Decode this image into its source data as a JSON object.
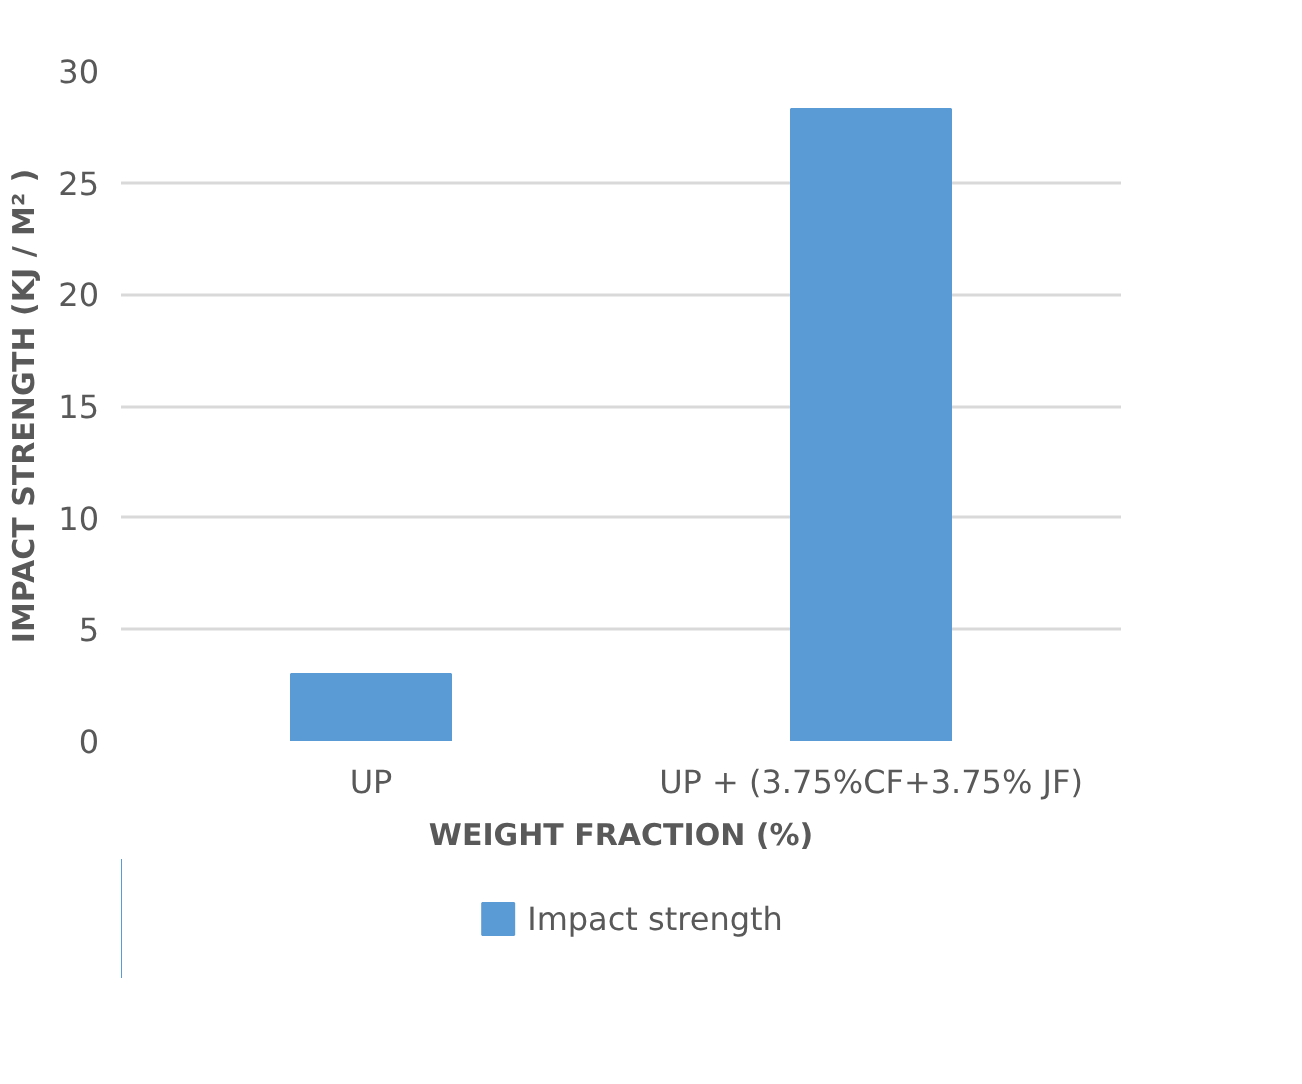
{
  "chart_data": {
    "type": "bar",
    "xlabel": "WEIGHT FRACTION (%)",
    "ylabel": "IMPACT STRENGTH (KJ / M² )",
    "categories": [
      "UP",
      "UP + (3.75%CF+3.75% JF)"
    ],
    "series": [
      {
        "name": "Impact strength",
        "color": "#5b9bd5",
        "values": [
          3.0,
          28.3
        ]
      }
    ],
    "ylim": [
      0,
      30
    ],
    "yticks": [
      0,
      5,
      10,
      15,
      20,
      25,
      30
    ],
    "grid": "y",
    "legend": "bottom"
  }
}
